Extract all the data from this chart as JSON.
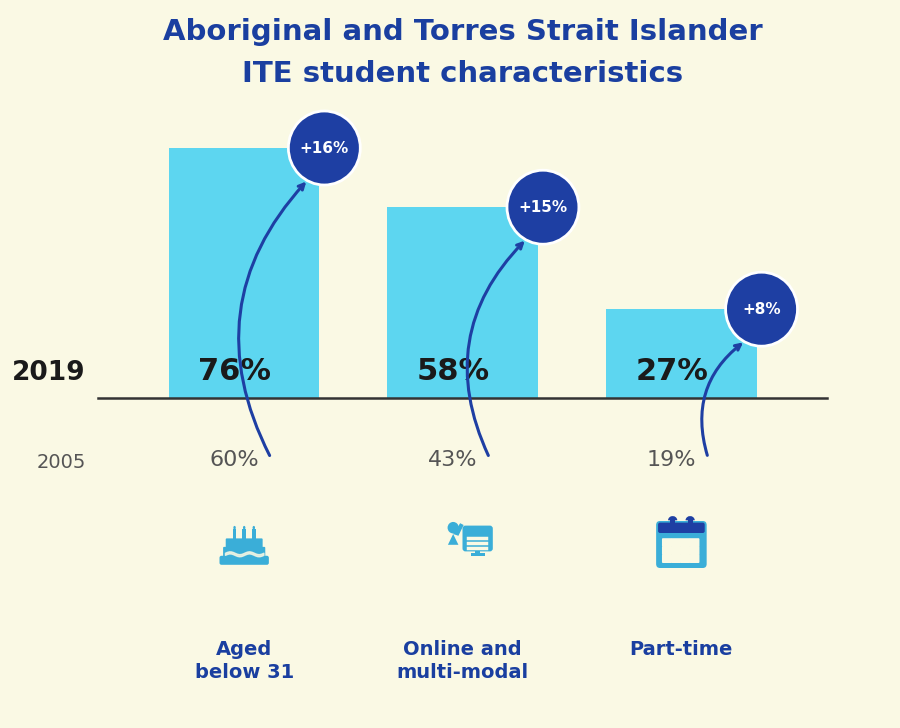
{
  "title_line1": "Aboriginal and Torres Strait Islander",
  "title_line2": "ITE student characteristics",
  "title_color": "#1a3fa0",
  "background_color": "#faf9e4",
  "bar_color": "#5dd6f0",
  "bar_values_2019": [
    76,
    58,
    27
  ],
  "bar_values_2005": [
    60,
    43,
    19
  ],
  "bar_increase": [
    "+16%",
    "+15%",
    "+8%"
  ],
  "categories": [
    "Aged\nbelow 31",
    "Online and\nmulti-modal",
    "Part-time"
  ],
  "year_2019": "2019",
  "year_2005": "2005",
  "badge_color": "#1e3fa3",
  "badge_text_color": "#ffffff",
  "arrow_color": "#1e3fa3",
  "axis_line_color": "#333333",
  "icon_color": "#3aaed8",
  "text_2019_color": "#1a1a1a",
  "text_2005_color": "#555555",
  "label_dark_color": "#1a3fa0"
}
